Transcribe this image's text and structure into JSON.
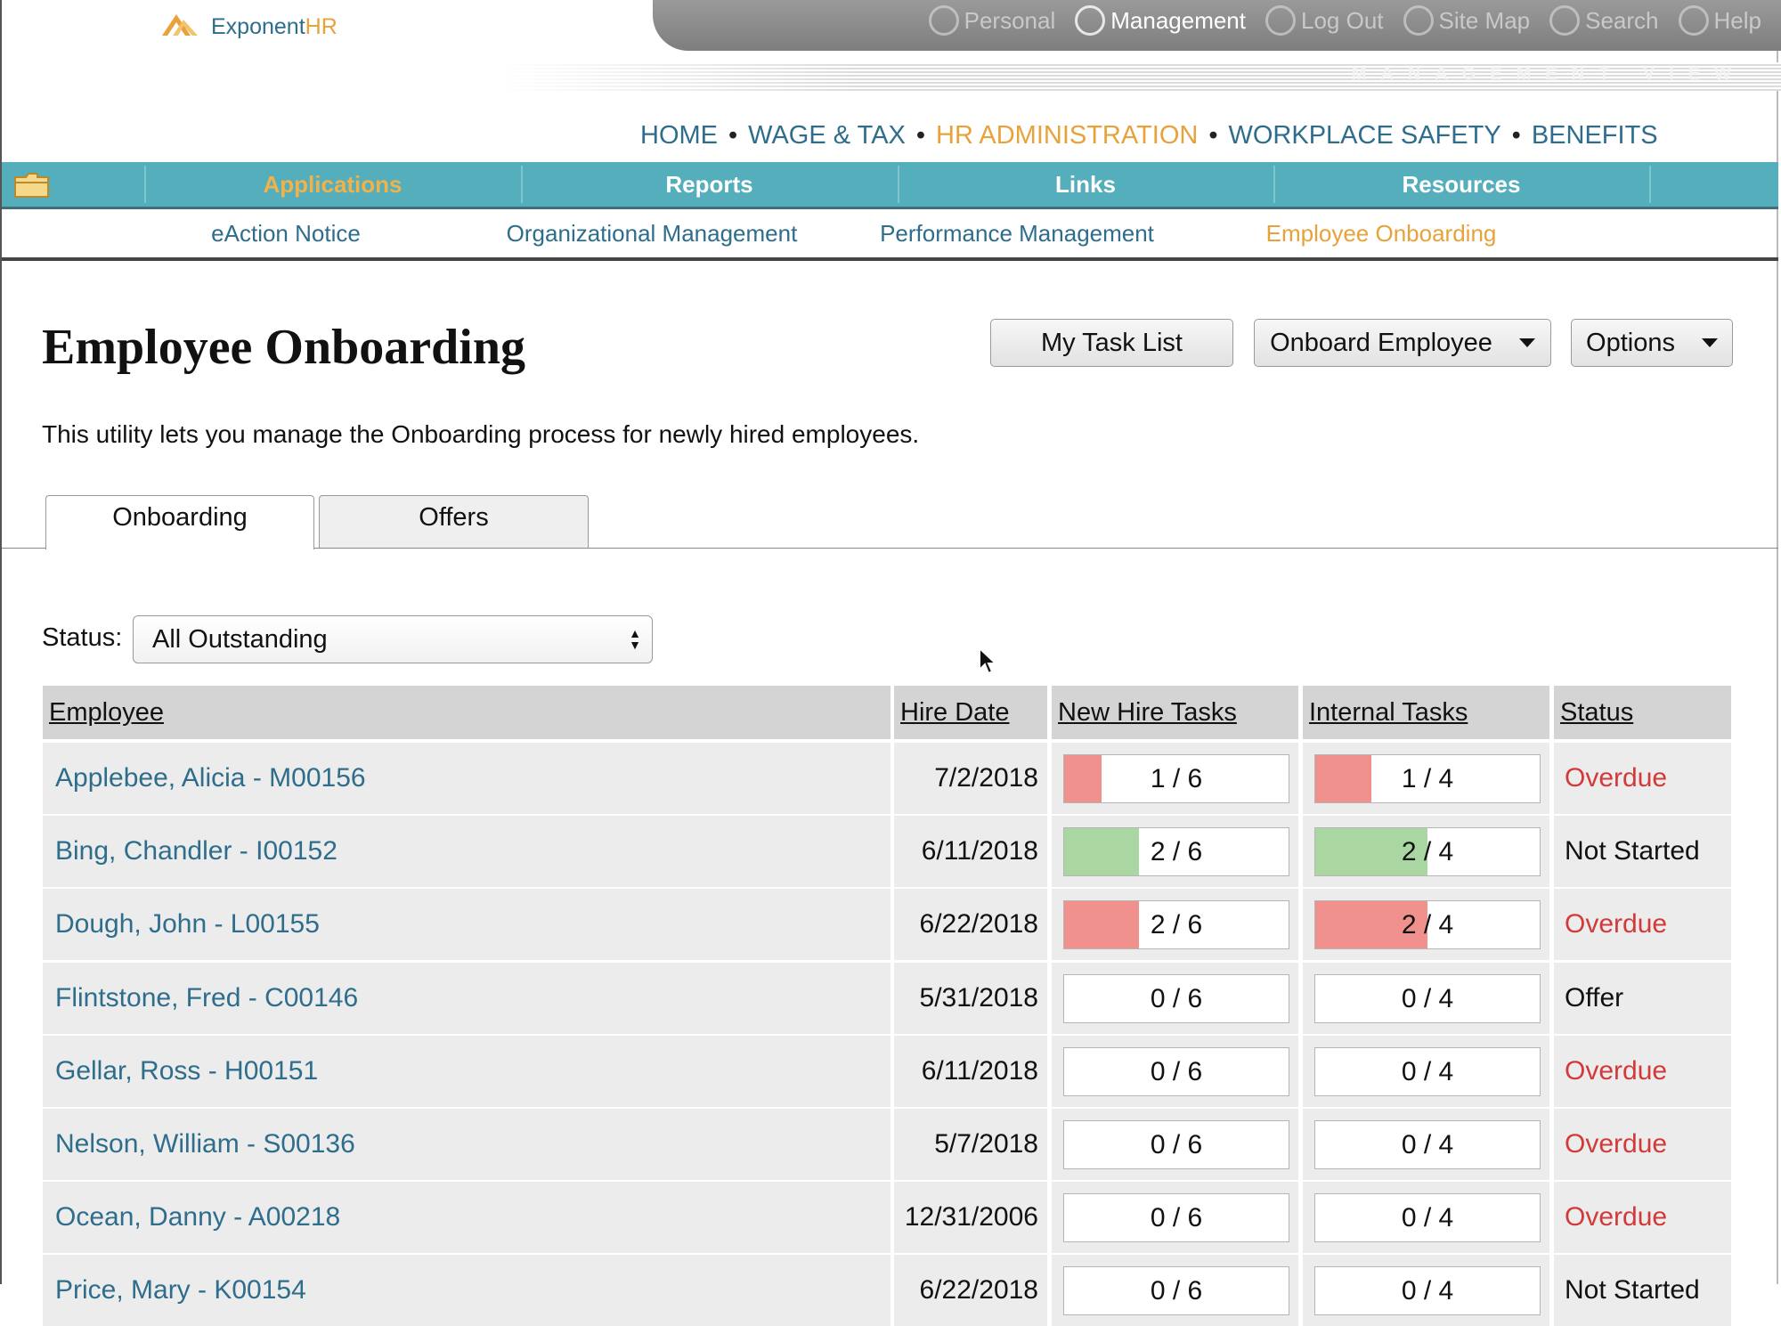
{
  "header": {
    "logo": [
      "Exponent",
      "HR"
    ],
    "top_links": [
      "Personal",
      "Management",
      "Log Out",
      "Site Map",
      "Search",
      "Help"
    ],
    "active_top_link": 1,
    "banner": "MANAGEMENT VIEW"
  },
  "nav": {
    "items": [
      "HOME",
      "WAGE & TAX",
      "HR ADMINISTRATION",
      "WORKPLACE SAFETY",
      "BENEFITS"
    ],
    "active": 2
  },
  "menu": {
    "items": [
      "Applications",
      "Reports",
      "Links",
      "Resources"
    ],
    "active": 0
  },
  "submenu": {
    "items": [
      "eAction Notice",
      "Organizational Management",
      "Performance Management",
      "Employee Onboarding"
    ],
    "active": 3
  },
  "page": {
    "title": "Employee Onboarding",
    "description": "This utility lets you manage the Onboarding process for newly hired employees.",
    "buttons": [
      {
        "label": "My Task List",
        "dropdown": false
      },
      {
        "label": "Onboard Employee",
        "dropdown": true
      },
      {
        "label": "Options",
        "dropdown": true
      }
    ],
    "tabs": [
      "Onboarding",
      "Offers"
    ],
    "active_tab": 0,
    "filter": {
      "label": "Status:",
      "value": "All Outstanding"
    }
  },
  "table": {
    "columns": [
      "Employee",
      "Hire Date",
      "New Hire Tasks",
      "Internal Tasks",
      "Status"
    ],
    "rows": [
      {
        "employee": "Applebee, Alicia - M00156",
        "hire_date": "7/2/2018",
        "new_hire_tasks": {
          "text": "1 / 6",
          "color": "#f0918d"
        },
        "internal_tasks": {
          "text": "1 / 4",
          "color": "#f0918d"
        },
        "status": "Overdue",
        "status_color": "#d23a3a"
      },
      {
        "employee": "Bing, Chandler - I00152",
        "hire_date": "6/11/2018",
        "new_hire_tasks": {
          "text": "2 / 6",
          "color": "#a9d6a1"
        },
        "internal_tasks": {
          "text": "2 / 4",
          "color": "#a9d6a1"
        },
        "status": "Not Started",
        "status_color": "#111111"
      },
      {
        "employee": "Dough, John - L00155",
        "hire_date": "6/22/2018",
        "new_hire_tasks": {
          "text": "2 / 6",
          "color": "#f0918d"
        },
        "internal_tasks": {
          "text": "2 / 4",
          "color": "#f0918d"
        },
        "status": "Overdue",
        "status_color": "#d23a3a"
      },
      {
        "employee": "Flintstone, Fred - C00146",
        "hire_date": "5/31/2018",
        "new_hire_tasks": {
          "text": "0 / 6",
          "color": "#f0918d"
        },
        "internal_tasks": {
          "text": "0 / 4",
          "color": "#f0918d"
        },
        "status": "Offer",
        "status_color": "#111111"
      },
      {
        "employee": "Gellar, Ross - H00151",
        "hire_date": "6/11/2018",
        "new_hire_tasks": {
          "text": "0 / 6",
          "color": "#f0918d"
        },
        "internal_tasks": {
          "text": "0 / 4",
          "color": "#f0918d"
        },
        "status": "Overdue",
        "status_color": "#d23a3a"
      },
      {
        "employee": "Nelson, William - S00136",
        "hire_date": "5/7/2018",
        "new_hire_tasks": {
          "text": "0 / 6",
          "color": "#f0918d"
        },
        "internal_tasks": {
          "text": "0 / 4",
          "color": "#f0918d"
        },
        "status": "Overdue",
        "status_color": "#d23a3a"
      },
      {
        "employee": "Ocean, Danny - A00218",
        "hire_date": "12/31/2006",
        "new_hire_tasks": {
          "text": "0 / 6",
          "color": "#f0918d"
        },
        "internal_tasks": {
          "text": "0 / 4",
          "color": "#f0918d"
        },
        "status": "Overdue",
        "status_color": "#d23a3a"
      },
      {
        "employee": "Price, Mary - K00154",
        "hire_date": "6/22/2018",
        "new_hire_tasks": {
          "text": "0 / 6",
          "color": "#f0918d"
        },
        "internal_tasks": {
          "text": "0 / 4",
          "color": "#f0918d"
        },
        "status": "Not Started",
        "status_color": "#111111"
      }
    ]
  }
}
